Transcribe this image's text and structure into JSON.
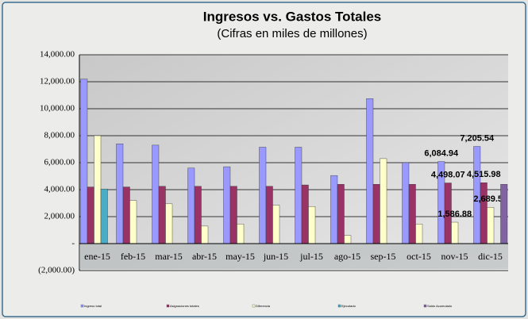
{
  "chart_data": {
    "type": "bar",
    "title": "Ingresos vs. Gastos Totales",
    "subtitle": "(Cifras en miles de millones)",
    "categories": [
      "ene-15",
      "feb-15",
      "mar-15",
      "abr-15",
      "may-15",
      "jun-15",
      "jul-15",
      "ago-15",
      "sep-15",
      "oct-15",
      "nov-15",
      "dic-15"
    ],
    "series": [
      {
        "name": "Ingreso total",
        "color": "#9999ff",
        "values": [
          12200,
          7400,
          7300,
          5600,
          5700,
          7150,
          7150,
          5050,
          10750,
          6000,
          6084.94,
          7205.54
        ],
        "value_labels": [
          null,
          null,
          null,
          null,
          null,
          null,
          null,
          null,
          null,
          null,
          "6,084.94",
          "7,205.54"
        ]
      },
      {
        "name": "Asignaciones totales",
        "color": "#993366",
        "values": [
          4200,
          4200,
          4250,
          4250,
          4250,
          4250,
          4350,
          4400,
          4400,
          4400,
          4498.07,
          4515.98
        ],
        "value_labels": [
          null,
          null,
          null,
          null,
          null,
          null,
          null,
          null,
          null,
          null,
          "4,498.07",
          "4,515.98"
        ]
      },
      {
        "name": "Diferencia",
        "color": "#ffffcc",
        "values": [
          8000,
          3200,
          2950,
          1300,
          1450,
          2850,
          2750,
          600,
          6300,
          1450,
          1586.88,
          2689.57
        ],
        "value_labels": [
          null,
          null,
          null,
          null,
          null,
          null,
          null,
          null,
          null,
          null,
          "1,586.88",
          "2,689.57"
        ]
      },
      {
        "name": "Ejecutado",
        "color": "#4bacc6",
        "values": [
          4050,
          null,
          null,
          null,
          null,
          null,
          null,
          null,
          null,
          null,
          null,
          null
        ]
      },
      {
        "name": "Saldo Acumulado",
        "color": "#8064a2",
        "values": [
          null,
          null,
          null,
          null,
          null,
          null,
          null,
          null,
          null,
          null,
          null,
          4400
        ]
      }
    ],
    "ylim": [
      -2000,
      14000
    ],
    "yticks": [
      {
        "value": -2000,
        "label": "(2,000.00)"
      },
      {
        "value": 0,
        "label": "-"
      },
      {
        "value": 2000,
        "label": "2,000.00"
      },
      {
        "value": 4000,
        "label": "4,000.00"
      },
      {
        "value": 6000,
        "label": "6,000.00"
      },
      {
        "value": 8000,
        "label": "8,000.00"
      },
      {
        "value": 10000,
        "label": "10,000.00"
      },
      {
        "value": 12000,
        "label": "12,000.00"
      },
      {
        "value": 14000,
        "label": "14,000.00"
      }
    ],
    "grid": true
  }
}
